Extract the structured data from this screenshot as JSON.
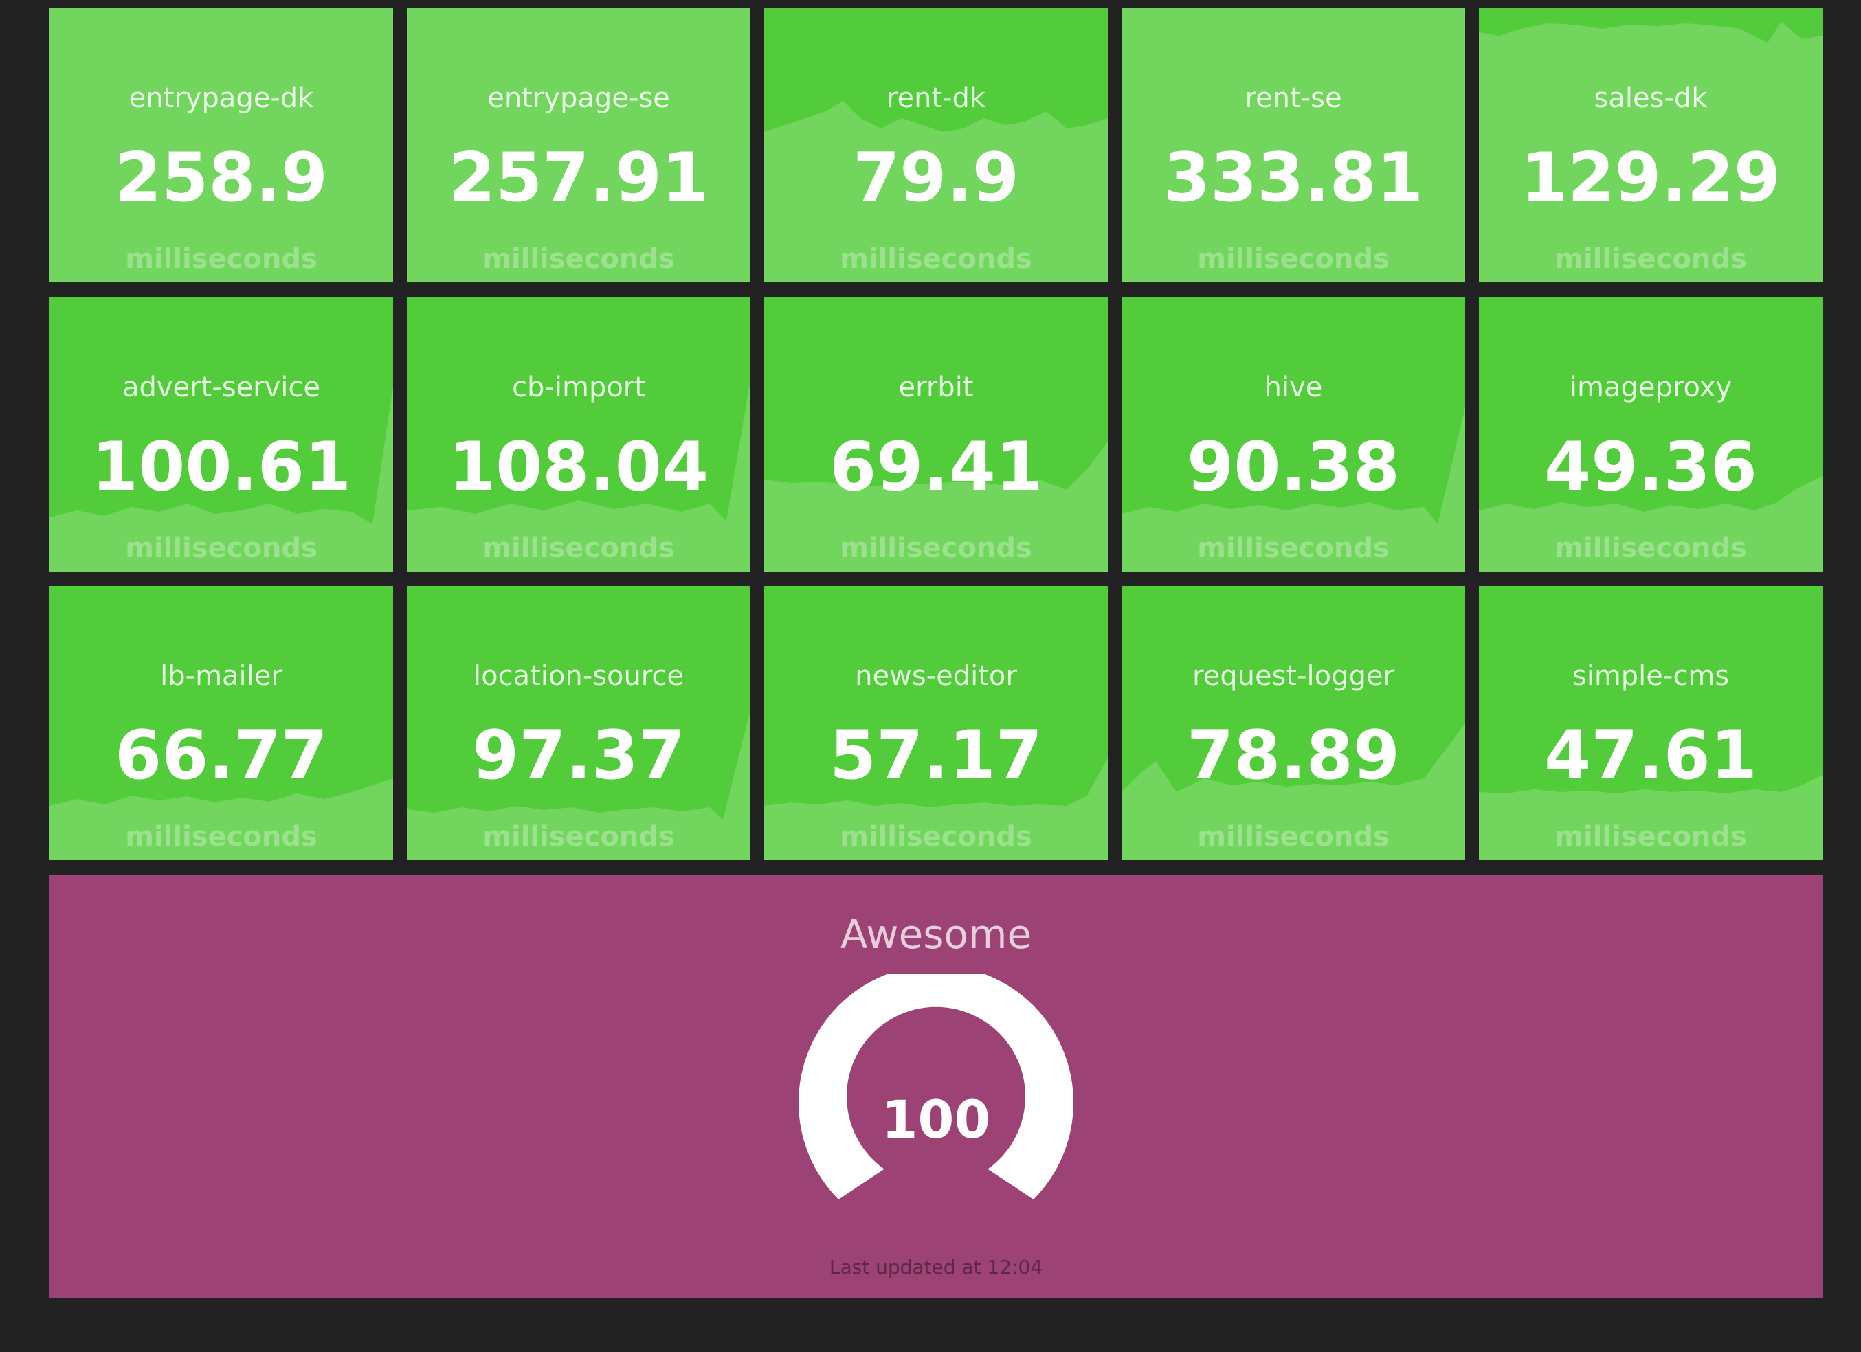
{
  "colors": {
    "background": "#222222",
    "tile_bright": "#52cc3a",
    "tile_light": "#72d65e",
    "meter_bg": "#9c4274"
  },
  "tiles": [
    {
      "title": "entrypage-dk",
      "value": "258.9",
      "unit": "milliseconds"
    },
    {
      "title": "entrypage-se",
      "value": "257.91",
      "unit": "milliseconds"
    },
    {
      "title": "rent-dk",
      "value": "79.9",
      "unit": "milliseconds"
    },
    {
      "title": "rent-se",
      "value": "333.81",
      "unit": "milliseconds"
    },
    {
      "title": "sales-dk",
      "value": "129.29",
      "unit": "milliseconds"
    },
    {
      "title": "advert-service",
      "value": "100.61",
      "unit": "milliseconds"
    },
    {
      "title": "cb-import",
      "value": "108.04",
      "unit": "milliseconds"
    },
    {
      "title": "errbit",
      "value": "69.41",
      "unit": "milliseconds"
    },
    {
      "title": "hive",
      "value": "90.38",
      "unit": "milliseconds"
    },
    {
      "title": "imageproxy",
      "value": "49.36",
      "unit": "milliseconds"
    },
    {
      "title": "lb-mailer",
      "value": "66.77",
      "unit": "milliseconds"
    },
    {
      "title": "location-source",
      "value": "97.37",
      "unit": "milliseconds"
    },
    {
      "title": "news-editor",
      "value": "57.17",
      "unit": "milliseconds"
    },
    {
      "title": "request-logger",
      "value": "78.89",
      "unit": "milliseconds"
    },
    {
      "title": "simple-cms",
      "value": "47.61",
      "unit": "milliseconds"
    }
  ],
  "meter": {
    "title": "Awesome",
    "value": "100",
    "updated": "Last updated at 12:04"
  }
}
